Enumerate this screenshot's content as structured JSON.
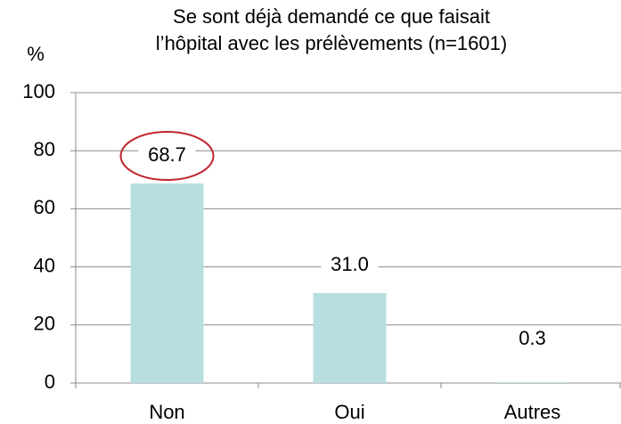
{
  "chart_data": {
    "type": "bar",
    "title": [
      "Se sont déjà demandé ce que faisait",
      "l’hôpital avec les prélèvements (n=1601)"
    ],
    "y_label": "%",
    "categories": [
      "Non",
      "Oui",
      "Autres"
    ],
    "values": [
      68.7,
      31.0,
      0.3
    ],
    "value_labels": [
      "68.7",
      "31.0",
      "0.3"
    ],
    "color": "#b7dfe0",
    "ylim": [
      0,
      100
    ],
    "yticks": [
      0,
      20,
      40,
      60,
      80,
      100
    ],
    "grid": true
  }
}
